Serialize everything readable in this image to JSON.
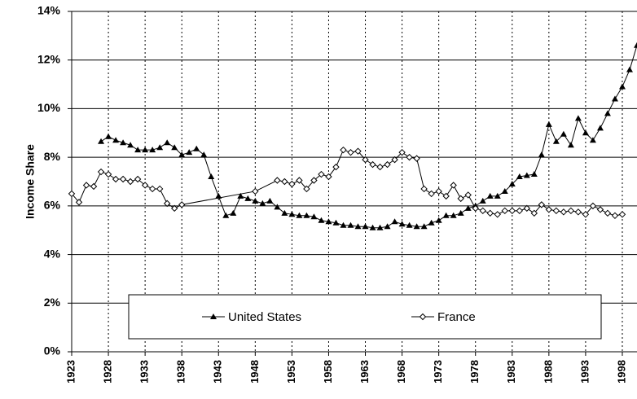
{
  "chart_data": {
    "type": "line",
    "y_label": "Income Share",
    "xlim": [
      1923,
      2000
    ],
    "xticks": [
      1923,
      1928,
      1933,
      1938,
      1943,
      1948,
      1953,
      1958,
      1963,
      1968,
      1973,
      1978,
      1983,
      1988,
      1993,
      1998
    ],
    "ylim": [
      0,
      14
    ],
    "yticks": [
      {
        "value": 0,
        "label": "0%"
      },
      {
        "value": 2,
        "label": "2%"
      },
      {
        "value": 4,
        "label": "4%"
      },
      {
        "value": 6,
        "label": "6%"
      },
      {
        "value": 8,
        "label": "8%"
      },
      {
        "value": 10,
        "label": "10%"
      },
      {
        "value": 12,
        "label": "12%"
      },
      {
        "value": 14,
        "label": "14%"
      }
    ],
    "grid": true,
    "legend": "bottom",
    "series": [
      {
        "name": "United States",
        "color": "#000000",
        "marker": "triangle",
        "x": [
          1927,
          1928,
          1929,
          1930,
          1931,
          1932,
          1933,
          1934,
          1935,
          1936,
          1937,
          1938,
          1939,
          1940,
          1941,
          1942,
          1943,
          1944,
          1945,
          1946,
          1947,
          1948,
          1949,
          1950,
          1951,
          1952,
          1953,
          1954,
          1955,
          1956,
          1957,
          1958,
          1959,
          1960,
          1961,
          1962,
          1963,
          1964,
          1965,
          1966,
          1967,
          1968,
          1969,
          1970,
          1971,
          1972,
          1973,
          1974,
          1975,
          1976,
          1977,
          1978,
          1979,
          1980,
          1981,
          1982,
          1983,
          1984,
          1985,
          1986,
          1987,
          1988,
          1989,
          1990,
          1991,
          1992,
          1993,
          1994,
          1995,
          1996,
          1997,
          1998,
          1999,
          2000
        ],
        "values": [
          8.65,
          8.85,
          8.7,
          8.6,
          8.5,
          8.3,
          8.3,
          8.3,
          8.4,
          8.6,
          8.4,
          8.1,
          8.2,
          8.35,
          8.1,
          7.2,
          6.4,
          5.6,
          5.7,
          6.4,
          6.3,
          6.2,
          6.1,
          6.2,
          5.95,
          5.7,
          5.65,
          5.6,
          5.6,
          5.55,
          5.4,
          5.35,
          5.3,
          5.2,
          5.2,
          5.15,
          5.15,
          5.1,
          5.1,
          5.15,
          5.35,
          5.25,
          5.2,
          5.15,
          5.15,
          5.3,
          5.4,
          5.6,
          5.6,
          5.7,
          5.9,
          6.0,
          6.2,
          6.4,
          6.4,
          6.6,
          6.9,
          7.2,
          7.25,
          7.3,
          8.1,
          9.35,
          8.65,
          8.95,
          8.5,
          9.6,
          9.0,
          8.7,
          9.2,
          9.8,
          10.4,
          10.9,
          11.6,
          12.6
        ]
      },
      {
        "name": "France",
        "color": "#000000",
        "marker": "diamond",
        "x": [
          1923,
          1924,
          1925,
          1926,
          1927,
          1928,
          1929,
          1930,
          1931,
          1932,
          1933,
          1934,
          1935,
          1936,
          1937,
          1938,
          1948,
          1951,
          1952,
          1953,
          1954,
          1955,
          1956,
          1957,
          1958,
          1959,
          1960,
          1961,
          1962,
          1963,
          1964,
          1965,
          1966,
          1967,
          1968,
          1969,
          1970,
          1971,
          1972,
          1973,
          1974,
          1975,
          1976,
          1977,
          1978,
          1979,
          1980,
          1981,
          1982,
          1983,
          1984,
          1985,
          1986,
          1987,
          1988,
          1989,
          1990,
          1991,
          1992,
          1993,
          1994,
          1995,
          1996,
          1997,
          1998
        ],
        "values": [
          6.5,
          6.15,
          6.85,
          6.8,
          7.4,
          7.3,
          7.1,
          7.1,
          7.0,
          7.1,
          6.85,
          6.7,
          6.7,
          6.1,
          5.9,
          6.05,
          6.6,
          7.05,
          7.0,
          6.9,
          7.05,
          6.7,
          7.05,
          7.3,
          7.2,
          7.6,
          8.3,
          8.2,
          8.25,
          7.9,
          7.7,
          7.6,
          7.7,
          7.9,
          8.2,
          8.0,
          7.95,
          6.7,
          6.5,
          6.6,
          6.4,
          6.85,
          6.3,
          6.45,
          5.9,
          5.8,
          5.7,
          5.65,
          5.8,
          5.8,
          5.8,
          5.9,
          5.7,
          6.05,
          5.85,
          5.8,
          5.75,
          5.8,
          5.75,
          5.65,
          6.0,
          5.85,
          5.7,
          5.6,
          5.65
        ]
      }
    ]
  }
}
